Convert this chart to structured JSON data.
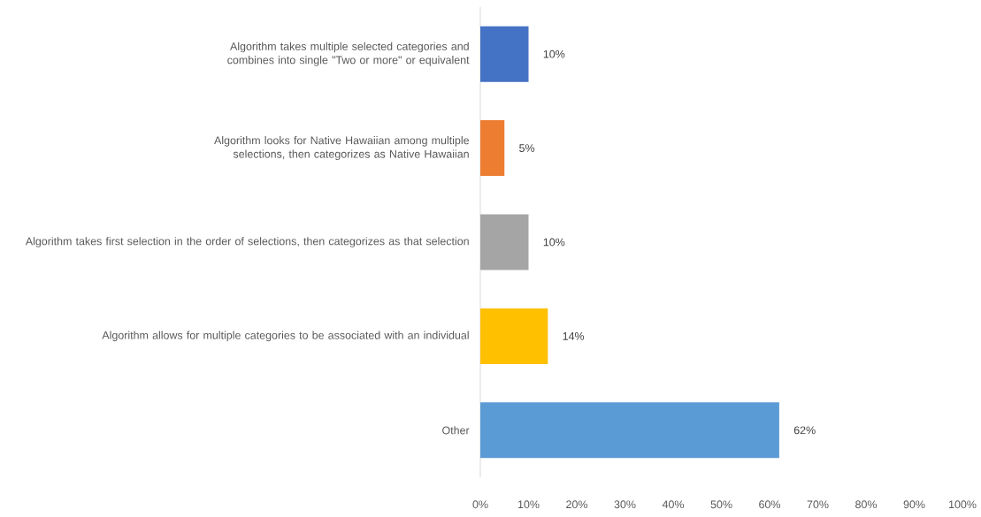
{
  "chart_data": {
    "type": "bar",
    "orientation": "horizontal",
    "categories": [
      "Algorithm takes multiple selected categories and combines into single \"Two or more\" or equivalent",
      "Algorithm looks for Native Hawaiian among multiple selections, then categorizes as Native Hawaiian",
      "Algorithm takes first selection in the order of selections, then categorizes as that selection",
      "Algorithm allows for multiple categories to be associated with an individual",
      "Other"
    ],
    "values": [
      10,
      5,
      10,
      14,
      62
    ],
    "colors": [
      "#4472c4",
      "#ed7d31",
      "#a5a5a5",
      "#ffc000",
      "#5b9bd5"
    ],
    "value_labels": [
      "10%",
      "5%",
      "10%",
      "14%",
      "62%"
    ],
    "xlim": [
      0,
      100
    ],
    "xticks": [
      {
        "value": 0,
        "label": "0%"
      },
      {
        "value": 10,
        "label": "10%"
      },
      {
        "value": 20,
        "label": "20%"
      },
      {
        "value": 30,
        "label": "30%"
      },
      {
        "value": 40,
        "label": "40%"
      },
      {
        "value": 50,
        "label": "50%"
      },
      {
        "value": 60,
        "label": "60%"
      },
      {
        "value": 70,
        "label": "70%"
      },
      {
        "value": 80,
        "label": "80%"
      },
      {
        "value": 90,
        "label": "90%"
      },
      {
        "value": 100,
        "label": "100%"
      }
    ]
  }
}
